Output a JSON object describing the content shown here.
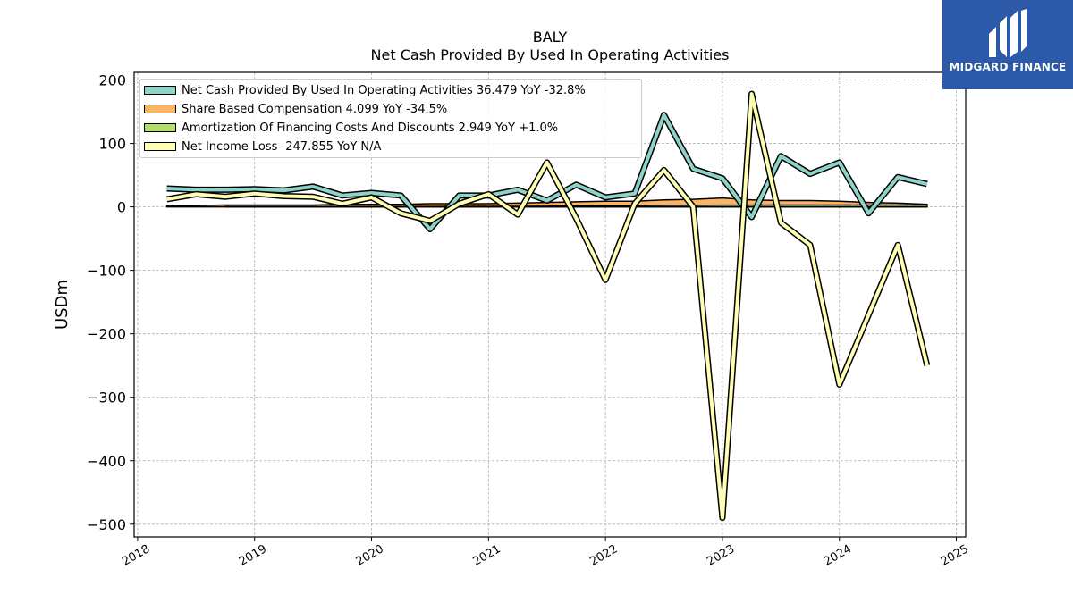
{
  "title": "BALY",
  "subtitle": "Net Cash Provided By Used In Operating Activities",
  "logo_text": "MIDGARD FINANCE",
  "legend": [
    {
      "label": "Net Cash Provided By Used In Operating Activities  36.479 YoY -32.8%",
      "color": "#8dd3c7"
    },
    {
      "label": "Share Based Compensation  4.099 YoY -34.5%",
      "color": "#fdb462"
    },
    {
      "label": "Amortization Of Financing Costs And Discounts  2.949 YoY +1.0%",
      "color": "#b3de69"
    },
    {
      "label": "Net Income Loss  -247.855 YoY N/A",
      "color": "#ffffb3"
    }
  ],
  "chart_data": {
    "type": "line",
    "ylabel": "USDm",
    "xlabel": "",
    "ylim": [
      -520,
      212
    ],
    "xlim": [
      2017.97,
      2025.08
    ],
    "yticks": [
      200,
      100,
      0,
      -100,
      -200,
      -300,
      -400,
      -500
    ],
    "xticks": [
      2018,
      2019,
      2020,
      2021,
      2022,
      2023,
      2024,
      2025
    ],
    "grid": true,
    "legend_position": "top-left",
    "series": [
      {
        "name": "Net Cash Provided By Used In Operating Activities",
        "color": "#8dd3c7",
        "x": [
          2018.25,
          2018.5,
          2018.75,
          2019.0,
          2019.25,
          2019.5,
          2019.75,
          2020.0,
          2020.25,
          2020.5,
          2020.75,
          2021.0,
          2021.25,
          2021.5,
          2021.75,
          2022.0,
          2022.25,
          2022.5,
          2022.75,
          2023.0,
          2023.25,
          2023.5,
          2023.75,
          2024.0,
          2024.25,
          2024.5,
          2024.75
        ],
        "y": [
          29,
          27,
          27,
          28,
          26,
          32,
          18,
          22,
          18,
          -35,
          18,
          18,
          27,
          10,
          35,
          15,
          21,
          145,
          60,
          45,
          -16,
          80,
          52,
          70,
          -10,
          47,
          36
        ]
      },
      {
        "name": "Share Based Compensation",
        "color": "#fdb462",
        "x": [
          2018.25,
          2018.5,
          2018.75,
          2019.0,
          2019.25,
          2019.5,
          2019.75,
          2020.0,
          2020.25,
          2020.5,
          2020.75,
          2021.0,
          2021.25,
          2021.5,
          2021.75,
          2022.0,
          2022.25,
          2022.5,
          2022.75,
          2023.0,
          2023.25,
          2023.5,
          2023.75,
          2024.0,
          2024.25,
          2024.5,
          2024.75
        ],
        "y": [
          2,
          2,
          3,
          3,
          3,
          3,
          4,
          4,
          4,
          5,
          5,
          5,
          6,
          7,
          8,
          9,
          9,
          11,
          12,
          14,
          11,
          10,
          10,
          9,
          7,
          6,
          4
        ]
      },
      {
        "name": "Amortization Of Financing Costs And Discounts",
        "color": "#b3de69",
        "x": [
          2018.75,
          2019.0,
          2019.25,
          2019.5,
          2019.75,
          2020.0,
          2020.25,
          2020.5,
          2020.75,
          2021.0,
          2021.25,
          2021.5,
          2021.75,
          2022.0,
          2022.25,
          2022.5,
          2022.75,
          2023.0,
          2023.25,
          2023.5,
          2023.75,
          2024.0,
          2024.25,
          2024.5,
          2024.75
        ],
        "y": [
          0.5,
          0.5,
          0.5,
          0.5,
          0.6,
          0.6,
          0.7,
          0.7,
          0.8,
          0.8,
          0.9,
          1.0,
          1.5,
          2.0,
          2.0,
          2.5,
          2.5,
          2.8,
          2.8,
          2.9,
          2.9,
          2.9,
          2.9,
          2.9,
          2.9
        ]
      },
      {
        "name": "Net Income Loss",
        "color": "#ffffb3",
        "x": [
          2018.25,
          2018.5,
          2018.75,
          2019.0,
          2019.25,
          2019.5,
          2019.75,
          2020.0,
          2020.25,
          2020.5,
          2020.75,
          2021.0,
          2021.25,
          2021.5,
          2021.75,
          2022.0,
          2022.25,
          2022.5,
          2022.75,
          2023.0,
          2023.25,
          2023.5,
          2023.75,
          2024.0,
          2024.25,
          2024.5,
          2024.75
        ],
        "y": [
          12,
          20,
          16,
          21,
          17,
          16,
          5,
          15,
          -10,
          -22,
          5,
          20,
          -12,
          70,
          -18,
          -115,
          5,
          58,
          0,
          -490,
          178,
          -25,
          -60,
          -280,
          -170,
          -60,
          -250
        ]
      }
    ]
  }
}
